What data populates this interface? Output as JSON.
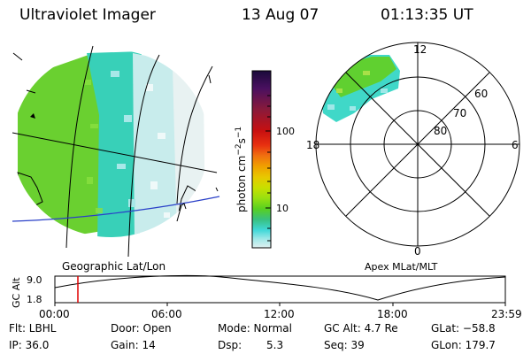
{
  "header": {
    "title": "Ultraviolet Imager",
    "date": "13 Aug 07",
    "time": "01:13:35 UT"
  },
  "geo_panel": {
    "label": "Geographic Lat/Lon"
  },
  "colorbar": {
    "unit_label": "photon cm",
    "unit_exp1": "−2",
    "unit_s": "s",
    "unit_exp2": "−1",
    "tick_100": "100",
    "tick_10": "10",
    "colors": [
      "#1a0a3a",
      "#4a1060",
      "#8a1a3a",
      "#c81010",
      "#e83010",
      "#f07010",
      "#f0a000",
      "#e8c800",
      "#c8e000",
      "#98e010",
      "#58d020",
      "#38c080",
      "#40d8d8",
      "#a0e8e8",
      "#e0f0f0"
    ]
  },
  "polar_panel": {
    "label": "Apex MLat/MLT",
    "mlt_labels": {
      "top": "12",
      "right": "6",
      "bottom": "0",
      "left": "18"
    },
    "lat_labels": [
      "60",
      "70",
      "80"
    ]
  },
  "timeline": {
    "axis_title": "GC Alt",
    "y_top": "9.0",
    "y_bottom": "1.8",
    "x_ticks": [
      "00:00",
      "06:00",
      "12:00",
      "18:00",
      "23:59"
    ],
    "marker_color": "#e00000"
  },
  "status": {
    "filter": "Flt: LBHL",
    "ip": "IP: 36.0",
    "door": "Door: Open",
    "gain": "Gain: 14",
    "mode": "Mode: Normal",
    "dsp_label": "Dsp:",
    "dsp_value": "5.3",
    "gc_alt": "GC Alt: 4.7 Re",
    "seq": "Seq: 39",
    "glat": "GLat: −58.8",
    "glon": "GLon: 179.7"
  }
}
